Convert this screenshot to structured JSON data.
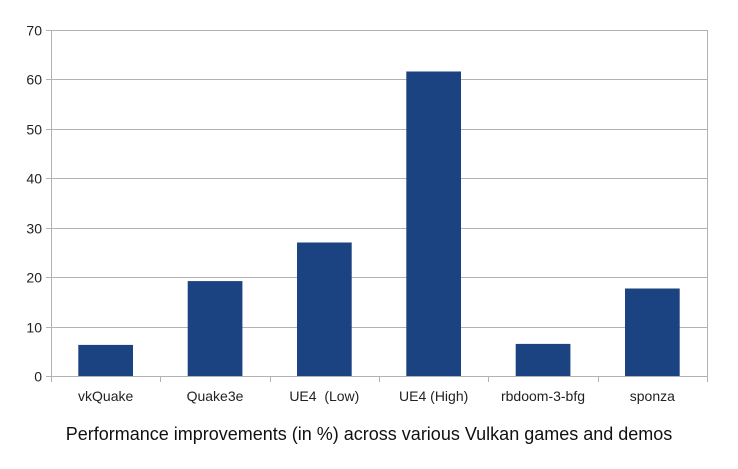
{
  "chart_data": {
    "type": "bar",
    "categories": [
      "vkQuake",
      "Quake3e",
      "UE4  (Low)",
      "UE4 (High)",
      "rbdoom-3-bfg",
      "sponza"
    ],
    "values": [
      6.3,
      19.2,
      27,
      61.6,
      6.5,
      17.7
    ],
    "title": "",
    "xlabel": "",
    "ylabel": "",
    "ylim": [
      0,
      70
    ],
    "yticks": [
      0,
      10,
      20,
      30,
      40,
      50,
      60,
      70
    ],
    "grid": true,
    "legend": "none",
    "bar_color": "#1b4281",
    "grid_color": "#b3b3b3",
    "axis_color": "#b3b3b3"
  },
  "caption": "Performance improvements (in %) across various Vulkan games and demos"
}
